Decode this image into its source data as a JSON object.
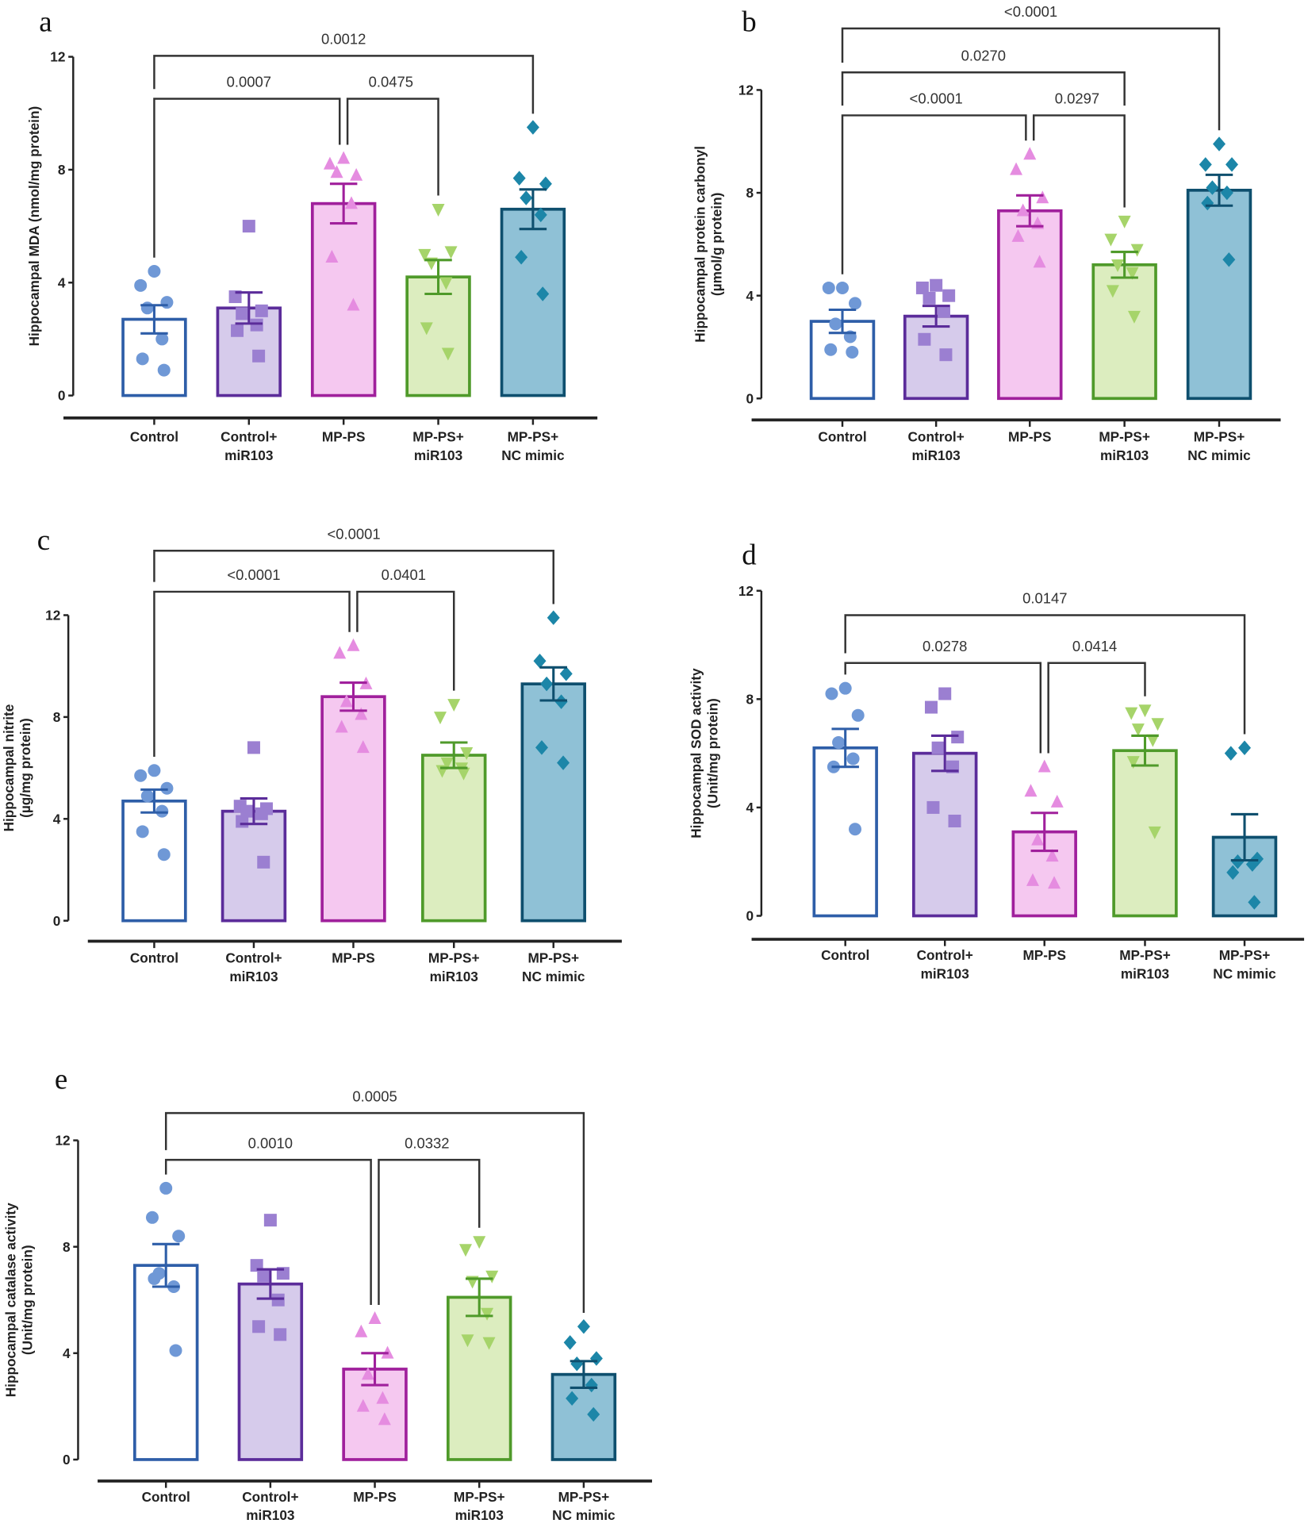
{
  "groups": [
    {
      "name": "Control",
      "label_lines": [
        "Control"
      ],
      "fill": "#ffffff",
      "stroke": "#2e5ea8",
      "point_color": "#6f98d6",
      "marker": "circle"
    },
    {
      "name": "Control+ miR103",
      "label_lines": [
        "Control+",
        "miR103"
      ],
      "fill": "#d6cbeb",
      "stroke": "#5b2c9a",
      "point_color": "#9b7fd1",
      "marker": "square"
    },
    {
      "name": "MP-PS",
      "label_lines": [
        "MP-PS"
      ],
      "fill": "#f5c8f0",
      "stroke": "#a0209c",
      "point_color": "#e58ce0",
      "marker": "triangle-up"
    },
    {
      "name": "MP-PS+ miR103",
      "label_lines": [
        "MP-PS+",
        "miR103"
      ],
      "fill": "#dcedbf",
      "stroke": "#4f9a2a",
      "point_color": "#a6d46a",
      "marker": "triangle-down"
    },
    {
      "name": "MP-PS+ NC mimic",
      "label_lines": [
        "MP-PS+",
        "NC mimic"
      ],
      "fill": "#8fc1d6",
      "stroke": "#0e4f6e",
      "point_color": "#1c86a8",
      "marker": "diamond"
    }
  ],
  "chart_data": [
    {
      "panel": "a",
      "type": "bar",
      "ylabel": "Hippocampal MDA (nmol/mg protein)",
      "ylabel_lines": [
        "Hippocampal MDA (nmol/mg protein)"
      ],
      "ylim": [
        0,
        12
      ],
      "yticks": [
        "0",
        "4",
        "8",
        "12"
      ],
      "categories": [
        "Control",
        "Control+ miR103",
        "MP-PS",
        "MP-PS+ miR103",
        "MP-PS+ NC mimic"
      ],
      "means": [
        2.7,
        3.1,
        6.8,
        4.2,
        6.6
      ],
      "sem": [
        0.5,
        0.55,
        0.7,
        0.6,
        0.7
      ],
      "points": [
        [
          4.4,
          3.9,
          3.3,
          3.1,
          2.0,
          1.3,
          0.9
        ],
        [
          6.0,
          3.5,
          3.0,
          2.9,
          2.5,
          2.3,
          1.4
        ],
        [
          8.4,
          8.2,
          7.8,
          7.9,
          6.8,
          4.9,
          3.2
        ],
        [
          6.6,
          5.0,
          5.1,
          4.7,
          4.0,
          2.4,
          1.5
        ],
        [
          9.5,
          7.7,
          7.5,
          7.0,
          6.4,
          4.9,
          3.6
        ]
      ],
      "comparisons": [
        {
          "from": 0,
          "to": 2,
          "p": "0.0007",
          "level": 0
        },
        {
          "from": 2,
          "to": 3,
          "p": "0.0475",
          "level": 0
        },
        {
          "from": 0,
          "to": 4,
          "p": "0.0012",
          "level": 1
        }
      ]
    },
    {
      "panel": "b",
      "type": "bar",
      "ylabel": "Hippocampal protein carbonyl (µmol/g protein)",
      "ylabel_lines": [
        "Hippocampal protein carbonyl",
        "(µmol/g protein)"
      ],
      "ylim": [
        0,
        12
      ],
      "yticks": [
        "0",
        "4",
        "8",
        "12"
      ],
      "categories": [
        "Control",
        "Control+ miR103",
        "MP-PS",
        "MP-PS+ miR103",
        "MP-PS+ NC mimic"
      ],
      "means": [
        3.0,
        3.2,
        7.3,
        5.2,
        8.1
      ],
      "sem": [
        0.45,
        0.4,
        0.6,
        0.5,
        0.6
      ],
      "points": [
        [
          4.3,
          4.3,
          3.7,
          2.9,
          2.4,
          1.9,
          1.8
        ],
        [
          4.4,
          4.3,
          4.0,
          3.9,
          3.4,
          2.3,
          1.7
        ],
        [
          9.5,
          8.9,
          7.8,
          7.3,
          6.8,
          6.3,
          5.3
        ],
        [
          6.9,
          6.2,
          5.8,
          5.2,
          4.9,
          4.2,
          3.2
        ],
        [
          9.9,
          9.1,
          9.1,
          8.2,
          8.0,
          7.6,
          5.4
        ]
      ],
      "comparisons": [
        {
          "from": 0,
          "to": 2,
          "p": "<0.0001",
          "level": 0
        },
        {
          "from": 2,
          "to": 3,
          "p": "0.0297",
          "level": 0
        },
        {
          "from": 0,
          "to": 3,
          "p": "0.0270",
          "level": 1
        },
        {
          "from": 0,
          "to": 4,
          "p": "<0.0001",
          "level": 2
        }
      ]
    },
    {
      "panel": "c",
      "type": "bar",
      "ylabel": "Hippocampal nitrite (µg/mg protein)",
      "ylabel_lines": [
        "Hippocampal nitrite",
        "(µg/mg protein)"
      ],
      "ylim": [
        0,
        12
      ],
      "yticks": [
        "0",
        "4",
        "8",
        "12"
      ],
      "categories": [
        "Control",
        "Control+ miR103",
        "MP-PS",
        "MP-PS+ miR103",
        "MP-PS+ NC mimic"
      ],
      "means": [
        4.7,
        4.3,
        8.8,
        6.5,
        9.3
      ],
      "sem": [
        0.45,
        0.5,
        0.55,
        0.5,
        0.65
      ],
      "points": [
        [
          5.9,
          5.7,
          5.2,
          4.9,
          4.3,
          3.5,
          2.6
        ],
        [
          6.8,
          4.5,
          4.4,
          4.3,
          4.2,
          3.9,
          2.3
        ],
        [
          10.8,
          10.5,
          9.3,
          8.6,
          8.1,
          7.6,
          6.8
        ],
        [
          8.5,
          8.0,
          6.6,
          6.2,
          6.0,
          5.9,
          5.8
        ],
        [
          11.9,
          10.2,
          9.7,
          9.3,
          8.6,
          6.8,
          6.2
        ]
      ],
      "comparisons": [
        {
          "from": 0,
          "to": 2,
          "p": "<0.0001",
          "level": 0
        },
        {
          "from": 2,
          "to": 3,
          "p": "0.0401",
          "level": 0
        },
        {
          "from": 0,
          "to": 4,
          "p": "<0.0001",
          "level": 1
        }
      ]
    },
    {
      "panel": "d",
      "type": "bar",
      "ylabel": "Hippocampal SOD activity (Unit/mg protein)",
      "ylabel_lines": [
        "Hippocampal SOD activity",
        "(Unit/mg protein)"
      ],
      "ylim": [
        0,
        12
      ],
      "yticks": [
        "0",
        "4",
        "8",
        "12"
      ],
      "categories": [
        "Control",
        "Control+ miR103",
        "MP-PS",
        "MP-PS+ miR103",
        "MP-PS+ NC mimic"
      ],
      "means": [
        6.2,
        6.0,
        3.1,
        6.1,
        2.9
      ],
      "sem": [
        0.7,
        0.65,
        0.7,
        0.55,
        0.85
      ],
      "points": [
        [
          8.4,
          8.2,
          7.4,
          6.4,
          5.8,
          5.5,
          3.2
        ],
        [
          8.2,
          7.7,
          6.6,
          6.2,
          5.5,
          4.0,
          3.5
        ],
        [
          5.5,
          4.6,
          4.2,
          2.8,
          2.2,
          1.3,
          1.2
        ],
        [
          7.6,
          7.5,
          7.1,
          6.9,
          6.5,
          5.7,
          3.1
        ],
        [
          6.2,
          6.0,
          2.1,
          2.0,
          1.9,
          1.6,
          0.5
        ]
      ],
      "comparisons": [
        {
          "from": 0,
          "to": 2,
          "p": "0.0278",
          "level": 0
        },
        {
          "from": 2,
          "to": 3,
          "p": "0.0414",
          "level": 0
        },
        {
          "from": 0,
          "to": 4,
          "p": "0.0147",
          "level": 1
        }
      ]
    },
    {
      "panel": "e",
      "type": "bar",
      "ylabel": "Hippocampal catalase activity (Unit/mg protein)",
      "ylabel_lines": [
        "Hippocampal catalase activity",
        "(Unit/mg protein)"
      ],
      "ylim": [
        0,
        12
      ],
      "yticks": [
        "0",
        "4",
        "8",
        "12"
      ],
      "categories": [
        "Control",
        "Control+ miR103",
        "MP-PS",
        "MP-PS+ miR103",
        "MP-PS+ NC mimic"
      ],
      "means": [
        7.3,
        6.6,
        3.4,
        6.1,
        3.2
      ],
      "sem": [
        0.8,
        0.55,
        0.6,
        0.7,
        0.5
      ],
      "points": [
        [
          10.2,
          9.1,
          8.4,
          7.0,
          6.5,
          6.8,
          4.1
        ],
        [
          9.0,
          7.3,
          7.0,
          6.9,
          6.0,
          5.0,
          4.7
        ],
        [
          5.3,
          4.8,
          4.0,
          3.2,
          2.3,
          2.0,
          1.5
        ],
        [
          8.2,
          7.9,
          6.9,
          6.7,
          5.5,
          4.5,
          4.4
        ],
        [
          5.0,
          4.4,
          3.8,
          3.6,
          2.8,
          2.3,
          1.7
        ]
      ],
      "comparisons": [
        {
          "from": 0,
          "to": 2,
          "p": "0.0010",
          "level": 0
        },
        {
          "from": 2,
          "to": 3,
          "p": "0.0332",
          "level": 0
        },
        {
          "from": 0,
          "to": 4,
          "p": "0.0005",
          "level": 1
        }
      ]
    }
  ]
}
